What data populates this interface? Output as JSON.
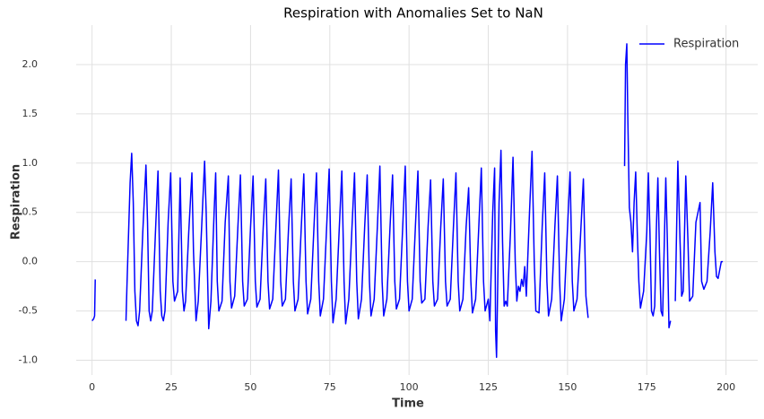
{
  "chart_data": {
    "type": "line",
    "title": "Respiration with Anomalies Set to NaN",
    "x_label": "Time",
    "y_label": "Respiration",
    "xlim": [
      -5,
      210
    ],
    "ylim": [
      -1.15,
      2.4
    ],
    "xticks": [
      0,
      25,
      50,
      75,
      100,
      125,
      150,
      175,
      200
    ],
    "yticks": [
      {
        "value": -1.0,
        "label": "-1.0"
      },
      {
        "value": -0.5,
        "label": "-0.5"
      },
      {
        "value": 0.0,
        "label": "0.0"
      },
      {
        "value": 0.5,
        "label": "0.5"
      },
      {
        "value": 1.0,
        "label": "1.0"
      },
      {
        "value": 1.5,
        "label": "1.5"
      },
      {
        "value": 2.0,
        "label": "2.0"
      }
    ],
    "grid": true,
    "legend": "upper right",
    "x": [
      0,
      0.5,
      0.8,
      1,
      5,
      10.7,
      11,
      12,
      12.5,
      13,
      13.5,
      14,
      14.5,
      15,
      16,
      17,
      17.5,
      18,
      18.5,
      19,
      20,
      20.8,
      21.5,
      22,
      22.5,
      23,
      24,
      24.8,
      25.5,
      26,
      27,
      27.8,
      28.5,
      29,
      29.5,
      30.5,
      31.5,
      32,
      32.8,
      33.5,
      34.5,
      35.5,
      36,
      36.8,
      37.5,
      38.5,
      39,
      39.5,
      40,
      41,
      42,
      43,
      43.5,
      44,
      45,
      46,
      46.8,
      47.5,
      48,
      49,
      50,
      50.8,
      51.5,
      52,
      53,
      54,
      54.8,
      55.5,
      56,
      57,
      58,
      58.8,
      59.5,
      60,
      61,
      62,
      62.8,
      63.5,
      64,
      65,
      66,
      66.8,
      67.5,
      68,
      69,
      70,
      70.8,
      71.5,
      72,
      73,
      74,
      74.8,
      75.5,
      76,
      77,
      78,
      78.8,
      79.5,
      80,
      81,
      82,
      82.8,
      83.5,
      84,
      85,
      86,
      86.8,
      87.5,
      88,
      89,
      90,
      90.8,
      91.5,
      92,
      93,
      94,
      94.8,
      95.5,
      96,
      97,
      98,
      98.8,
      99.5,
      100,
      101,
      102,
      102.8,
      103.5,
      104,
      105,
      106,
      106.8,
      107.5,
      108,
      109,
      110,
      110.8,
      111.5,
      112,
      113,
      114,
      114.8,
      115.5,
      116,
      117,
      118,
      118.8,
      119.5,
      120,
      121,
      122,
      122.8,
      123.5,
      124,
      125,
      125.5,
      126.4,
      127,
      127.3,
      127.6,
      128.4,
      129,
      129.5,
      130,
      130.5,
      131,
      132,
      132.8,
      133.5,
      134,
      134.5,
      135,
      135.5,
      136,
      136.5,
      137,
      138,
      138.8,
      139.5,
      140,
      141,
      142,
      142.8,
      143.5,
      144,
      145,
      146,
      146.8,
      147.5,
      148,
      149,
      150,
      150.8,
      151.5,
      152,
      153,
      154,
      155,
      155.8,
      156.5,
      160,
      168,
      168.3,
      168.7,
      169,
      169.5,
      170,
      170.5,
      171,
      171.5,
      172,
      172.5,
      173,
      174,
      175,
      175.5,
      176,
      176.5,
      177,
      177.5,
      178,
      178.5,
      179,
      179.5,
      180,
      181,
      181.5,
      182,
      182.5,
      183,
      184,
      184.8,
      185.5,
      186,
      186.5,
      187.3,
      188,
      188.5,
      189.5,
      190.5,
      191.8,
      192.3,
      193,
      194,
      195,
      195.8,
      196.5,
      197,
      197.5,
      198.5,
      199
    ],
    "series": [
      {
        "name": "Respiration",
        "color": "#0000ff",
        "values": [
          -0.6,
          -0.58,
          -0.55,
          -0.18,
          null,
          -0.6,
          -0.25,
          0.8,
          1.1,
          0.6,
          -0.3,
          -0.6,
          -0.65,
          -0.5,
          0.3,
          0.98,
          0.4,
          -0.5,
          -0.6,
          -0.5,
          0.3,
          0.92,
          -0.3,
          -0.55,
          -0.6,
          -0.5,
          0.4,
          0.9,
          -0.2,
          -0.4,
          -0.3,
          0.85,
          -0.3,
          -0.5,
          -0.4,
          0.3,
          0.9,
          0.1,
          -0.6,
          -0.4,
          0.3,
          1.02,
          0.5,
          -0.68,
          -0.4,
          0.5,
          0.9,
          -0.2,
          -0.5,
          -0.4,
          0.4,
          0.87,
          -0.2,
          -0.47,
          -0.35,
          0.35,
          0.88,
          -0.2,
          -0.45,
          -0.38,
          0.35,
          0.87,
          -0.2,
          -0.46,
          -0.38,
          0.35,
          0.84,
          -0.2,
          -0.48,
          -0.38,
          0.35,
          0.93,
          -0.2,
          -0.45,
          -0.38,
          0.35,
          0.84,
          -0.2,
          -0.5,
          -0.38,
          0.35,
          0.89,
          -0.2,
          -0.53,
          -0.38,
          0.35,
          0.9,
          -0.2,
          -0.55,
          -0.38,
          0.35,
          0.94,
          -0.2,
          -0.62,
          -0.38,
          0.35,
          0.92,
          -0.2,
          -0.63,
          -0.38,
          0.35,
          0.9,
          -0.2,
          -0.58,
          -0.38,
          0.35,
          0.88,
          -0.2,
          -0.55,
          -0.38,
          0.35,
          0.97,
          -0.2,
          -0.55,
          -0.38,
          0.35,
          0.88,
          -0.2,
          -0.48,
          -0.38,
          0.35,
          0.97,
          -0.2,
          -0.5,
          -0.38,
          0.35,
          0.92,
          -0.2,
          -0.42,
          -0.38,
          0.35,
          0.83,
          -0.2,
          -0.45,
          -0.38,
          0.35,
          0.84,
          -0.2,
          -0.45,
          -0.38,
          0.35,
          0.9,
          -0.2,
          -0.5,
          -0.38,
          0.35,
          0.75,
          -0.2,
          -0.52,
          -0.38,
          0.35,
          0.95,
          -0.2,
          -0.5,
          -0.38,
          -0.6,
          0.5,
          0.95,
          -0.7,
          -0.97,
          0.6,
          1.13,
          0.2,
          -0.45,
          -0.4,
          -0.45,
          0.3,
          1.06,
          0.0,
          -0.4,
          -0.25,
          -0.3,
          -0.18,
          -0.25,
          -0.05,
          -0.35,
          0.5,
          1.12,
          0.0,
          -0.5,
          -0.52,
          0.35,
          0.9,
          -0.2,
          -0.55,
          -0.38,
          0.35,
          0.87,
          -0.2,
          -0.6,
          -0.38,
          0.35,
          0.91,
          -0.2,
          -0.5,
          -0.38,
          0.2,
          0.84,
          -0.35,
          -0.57,
          null,
          0.97,
          2.0,
          2.21,
          1.5,
          0.55,
          0.4,
          0.1,
          0.6,
          0.91,
          0.3,
          -0.2,
          -0.47,
          -0.3,
          0.3,
          0.9,
          0.3,
          -0.5,
          -0.55,
          -0.45,
          0.3,
          0.85,
          0.1,
          -0.5,
          -0.55,
          0.85,
          0.2,
          -0.67,
          -0.6,
          null,
          -0.4,
          1.02,
          0.2,
          -0.35,
          -0.3,
          0.87,
          0.2,
          -0.4,
          -0.35,
          0.4,
          0.6,
          -0.2,
          -0.28,
          -0.2,
          0.3,
          0.8,
          0.1,
          -0.15,
          -0.17,
          0.0,
          0.0
        ]
      }
    ]
  }
}
